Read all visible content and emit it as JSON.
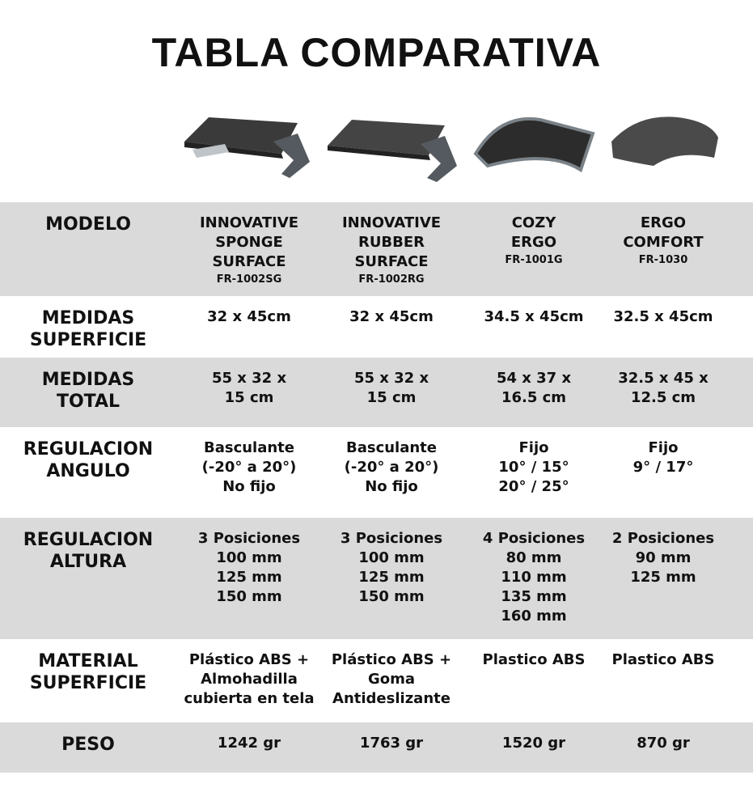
{
  "title": "TABLA COMPARATIVA",
  "products": [
    {
      "name": [
        "INNOVATIVE",
        "SPONGE",
        "SURFACE"
      ],
      "code": "FR-1002SG",
      "image": "footrest-sponge"
    },
    {
      "name": [
        "INNOVATIVE",
        "RUBBER",
        "SURFACE"
      ],
      "code": "FR-1002RG",
      "image": "footrest-rubber"
    },
    {
      "name": [
        "COZY",
        "ERGO"
      ],
      "code": "FR-1001G",
      "image": "footrest-cozy"
    },
    {
      "name": [
        "ERGO",
        "COMFORT"
      ],
      "code": "FR-1030",
      "image": "footrest-ergo-comfort"
    }
  ],
  "rows": [
    {
      "label": [
        "MODELO"
      ]
    },
    {
      "label": [
        "MEDIDAS",
        "SUPERFICIE"
      ],
      "values": [
        [
          "32 x 45cm"
        ],
        [
          "32 x 45cm"
        ],
        [
          "34.5 x 45cm"
        ],
        [
          "32.5 x 45cm"
        ]
      ]
    },
    {
      "label": [
        "MEDIDAS",
        "TOTAL"
      ],
      "values": [
        [
          "55 x 32 x",
          "15 cm"
        ],
        [
          "55 x 32 x",
          "15 cm"
        ],
        [
          "54 x 37 x",
          "16.5 cm"
        ],
        [
          "32.5 x 45 x",
          "12.5 cm"
        ]
      ]
    },
    {
      "label": [
        "REGULACION",
        "ANGULO"
      ],
      "values": [
        [
          "Basculante",
          "(-20° a 20°)",
          "No fijo"
        ],
        [
          "Basculante",
          "(-20° a 20°)",
          "No fijo"
        ],
        [
          "Fijo",
          "10° / 15°",
          "20° / 25°"
        ],
        [
          "Fijo",
          "9° / 17°"
        ]
      ]
    },
    {
      "label": [
        "REGULACION",
        "ALTURA"
      ],
      "values": [
        [
          "3 Posiciones",
          "100 mm",
          "125 mm",
          "150 mm"
        ],
        [
          "3 Posiciones",
          "100 mm",
          "125 mm",
          "150 mm"
        ],
        [
          "4 Posiciones",
          "80 mm",
          "110 mm",
          "135 mm",
          "160 mm"
        ],
        [
          "2 Posiciones",
          "90 mm",
          "125 mm"
        ]
      ]
    },
    {
      "label": [
        "MATERIAL",
        "SUPERFICIE"
      ],
      "values": [
        [
          "Plástico ABS +",
          "Almohadilla",
          "cubierta en tela"
        ],
        [
          "Plástico ABS +",
          "Goma",
          "Antideslizante"
        ],
        [
          "Plastico ABS"
        ],
        [
          "Plastico ABS"
        ]
      ]
    },
    {
      "label": [
        "PESO"
      ],
      "values": [
        [
          "1242 gr"
        ],
        [
          "1763 gr"
        ],
        [
          "1520 gr"
        ],
        [
          "870 gr"
        ]
      ]
    }
  ],
  "colors": {
    "band": "#d9dad9",
    "text": "#111111"
  }
}
